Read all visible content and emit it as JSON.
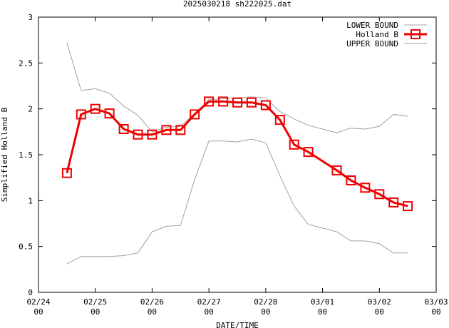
{
  "chart_data": {
    "type": "line",
    "title": "2025030218 sh222025.dat",
    "xlabel": "DATE/TIME",
    "ylabel": "Simplified Holland B",
    "ylim": [
      0,
      3
    ],
    "yticks": [
      {
        "value": 0,
        "label": "0"
      },
      {
        "value": 0.5,
        "label": "0.5"
      },
      {
        "value": 1,
        "label": "1"
      },
      {
        "value": 1.5,
        "label": "1.5"
      },
      {
        "value": 2,
        "label": "2"
      },
      {
        "value": 2.5,
        "label": "2.5"
      },
      {
        "value": 3,
        "label": "3"
      }
    ],
    "xlim": [
      "2025-02-24 00",
      "2025-03-03 00"
    ],
    "xticks": [
      {
        "value": "2025-02-24 00",
        "date": "02/24",
        "hour": "00"
      },
      {
        "value": "2025-02-25 00",
        "date": "02/25",
        "hour": "00"
      },
      {
        "value": "2025-02-26 00",
        "date": "02/26",
        "hour": "00"
      },
      {
        "value": "2025-02-27 00",
        "date": "02/27",
        "hour": "00"
      },
      {
        "value": "2025-02-28 00",
        "date": "02/28",
        "hour": "00"
      },
      {
        "value": "2025-03-01 00",
        "date": "03/01",
        "hour": "00"
      },
      {
        "value": "2025-03-02 00",
        "date": "03/02",
        "hour": "00"
      },
      {
        "value": "2025-03-03 00",
        "date": "03/03",
        "hour": "00"
      }
    ],
    "legend_position": "top-right",
    "series": [
      {
        "name": "LOWER BOUND",
        "color": "#a0a0a0",
        "marker": "none",
        "points": [
          [
            "2025-02-24 12",
            0.31
          ],
          [
            "2025-02-24 18",
            0.39
          ],
          [
            "2025-02-25 00",
            0.39
          ],
          [
            "2025-02-25 06",
            0.39
          ],
          [
            "2025-02-25 12",
            0.4
          ],
          [
            "2025-02-25 18",
            0.43
          ],
          [
            "2025-02-26 00",
            0.66
          ],
          [
            "2025-02-26 06",
            0.72
          ],
          [
            "2025-02-26 12",
            0.73
          ],
          [
            "2025-02-26 18",
            1.23
          ],
          [
            "2025-02-27 00",
            1.65
          ],
          [
            "2025-02-27 06",
            1.65
          ],
          [
            "2025-02-27 12",
            1.64
          ],
          [
            "2025-02-27 18",
            1.67
          ],
          [
            "2025-02-28 00",
            1.63
          ],
          [
            "2025-02-28 06",
            1.27
          ],
          [
            "2025-02-28 12",
            0.94
          ],
          [
            "2025-02-28 18",
            0.74
          ],
          [
            "2025-03-01 00",
            0.7
          ],
          [
            "2025-03-01 06",
            0.66
          ],
          [
            "2025-03-01 12",
            0.56
          ],
          [
            "2025-03-01 18",
            0.56
          ],
          [
            "2025-03-02 00",
            0.53
          ],
          [
            "2025-03-02 06",
            0.43
          ],
          [
            "2025-03-02 12",
            0.43
          ]
        ]
      },
      {
        "name": "Holland B",
        "color": "#ee0000",
        "marker": "square",
        "points": [
          [
            "2025-02-24 12",
            1.3
          ],
          [
            "2025-02-24 18",
            1.94
          ],
          [
            "2025-02-25 00",
            2.0
          ],
          [
            "2025-02-25 06",
            1.95
          ],
          [
            "2025-02-25 12",
            1.78
          ],
          [
            "2025-02-25 18",
            1.72
          ],
          [
            "2025-02-26 00",
            1.72
          ],
          [
            "2025-02-26 06",
            1.77
          ],
          [
            "2025-02-26 12",
            1.77
          ],
          [
            "2025-02-26 18",
            1.94
          ],
          [
            "2025-02-27 00",
            2.08
          ],
          [
            "2025-02-27 06",
            2.08
          ],
          [
            "2025-02-27 12",
            2.07
          ],
          [
            "2025-02-27 18",
            2.07
          ],
          [
            "2025-02-28 00",
            2.04
          ],
          [
            "2025-02-28 06",
            1.88
          ],
          [
            "2025-02-28 12",
            1.61
          ],
          [
            "2025-02-28 18",
            1.53
          ],
          [
            "2025-03-01 06",
            1.33
          ],
          [
            "2025-03-01 12",
            1.22
          ],
          [
            "2025-03-01 18",
            1.14
          ],
          [
            "2025-03-02 00",
            1.07
          ],
          [
            "2025-03-02 06",
            0.98
          ],
          [
            "2025-03-02 12",
            0.94
          ]
        ]
      },
      {
        "name": "UPPER BOUND",
        "color": "#a0a0a0",
        "marker": "none",
        "points": [
          [
            "2025-02-24 12",
            2.72
          ],
          [
            "2025-02-24 18",
            2.2
          ],
          [
            "2025-02-25 00",
            2.22
          ],
          [
            "2025-02-25 06",
            2.17
          ],
          [
            "2025-02-25 12",
            2.03
          ],
          [
            "2025-02-25 18",
            1.93
          ],
          [
            "2025-02-26 00",
            1.75
          ],
          [
            "2025-02-26 06",
            1.8
          ],
          [
            "2025-02-26 12",
            1.81
          ],
          [
            "2025-02-26 18",
            1.95
          ],
          [
            "2025-02-27 00",
            2.1
          ],
          [
            "2025-02-27 06",
            2.11
          ],
          [
            "2025-02-27 12",
            2.12
          ],
          [
            "2025-02-27 18",
            2.13
          ],
          [
            "2025-02-28 00",
            2.12
          ],
          [
            "2025-02-28 06",
            1.97
          ],
          [
            "2025-02-28 12",
            1.89
          ],
          [
            "2025-02-28 18",
            1.82
          ],
          [
            "2025-03-01 00",
            1.78
          ],
          [
            "2025-03-01 06",
            1.74
          ],
          [
            "2025-03-01 12",
            1.79
          ],
          [
            "2025-03-01 18",
            1.78
          ],
          [
            "2025-03-02 00",
            1.81
          ],
          [
            "2025-03-02 06",
            1.94
          ],
          [
            "2025-03-02 12",
            1.92
          ]
        ]
      }
    ]
  }
}
